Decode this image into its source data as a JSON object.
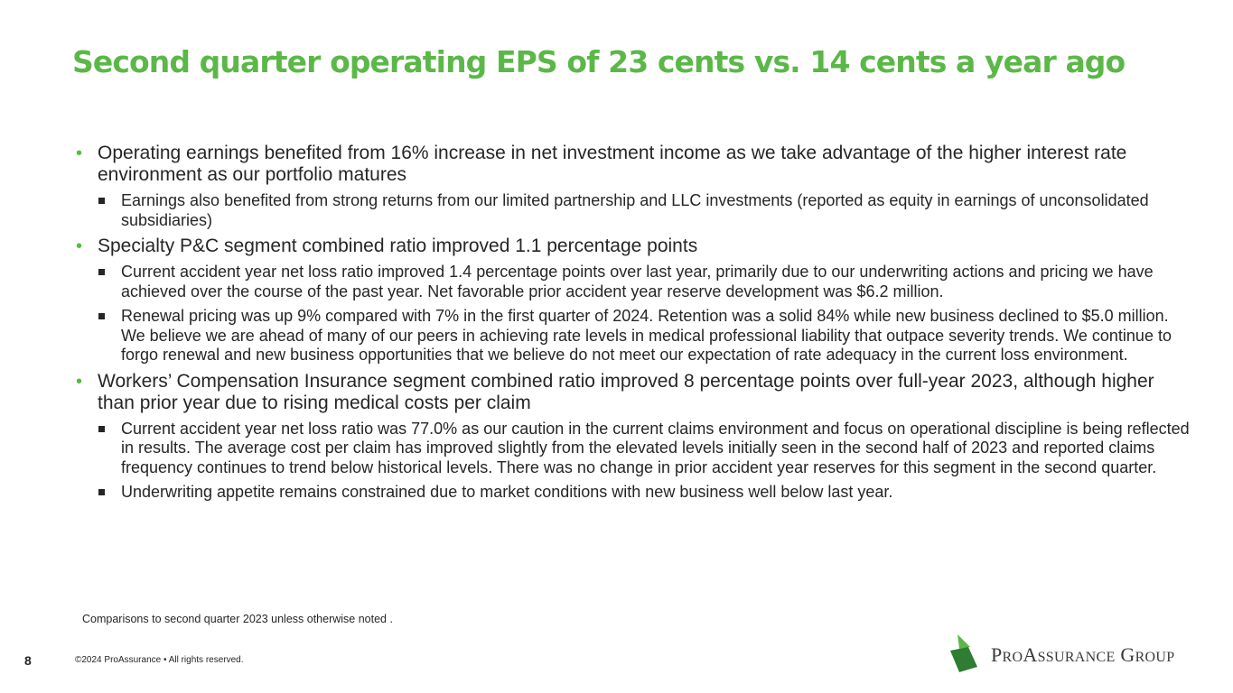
{
  "slide": {
    "title": "Second quarter operating EPS of 23 cents vs. 14 cents a year ago",
    "bullets": [
      {
        "text": "Operating earnings benefited from 16% increase in net investment income as we take advantage of the higher interest rate environment as our portfolio matures",
        "subs": [
          "Earnings also benefited from strong returns from our limited partnership and LLC investments (reported as equity in earnings of unconsolidated subsidiaries)"
        ]
      },
      {
        "text": "Specialty P&C segment combined ratio improved 1.1 percentage points",
        "subs": [
          "Current accident year net loss ratio improved 1.4 percentage points over last year, primarily due to our underwriting actions and pricing we have achieved over the course of the past year. Net favorable prior accident year reserve development was $6.2 million.",
          "Renewal pricing was up 9% compared with 7% in the first quarter of 2024. Retention was a solid 84% while new business declined to $5.0 million. We believe we are ahead of many of our peers in achieving rate levels in medical professional liability that outpace severity trends. We continue to forgo renewal and new business opportunities that we believe do not meet our expectation of rate adequacy in the current loss environment."
        ]
      },
      {
        "text": "Workers’ Compensation Insurance segment combined ratio improved 8 percentage points over full-year 2023, although higher than prior year due to rising medical costs per claim",
        "subs": [
          "Current accident year net loss ratio was 77.0% as our caution in the current claims environment and focus on operational discipline is being reflected in results. The average cost per claim has improved slightly from the elevated levels initially seen in the second half of 2023 and reported claims frequency continues to trend below historical levels. There was no change in prior accident year reserves for this segment in the second quarter.",
          "Underwriting appetite remains constrained due to market conditions with new business well below last year."
        ]
      }
    ],
    "footnote": "Comparisons to second quarter 2023 unless otherwise noted .",
    "page_number": "8",
    "copyright": "©2024 ProAssurance  •  All rights reserved.",
    "logo": {
      "text": "ProAssurance Group",
      "colors": {
        "light": "#5bb848",
        "dark": "#2e7d32"
      }
    }
  },
  "colors": {
    "accent": "#5bb848",
    "text": "#262626"
  }
}
